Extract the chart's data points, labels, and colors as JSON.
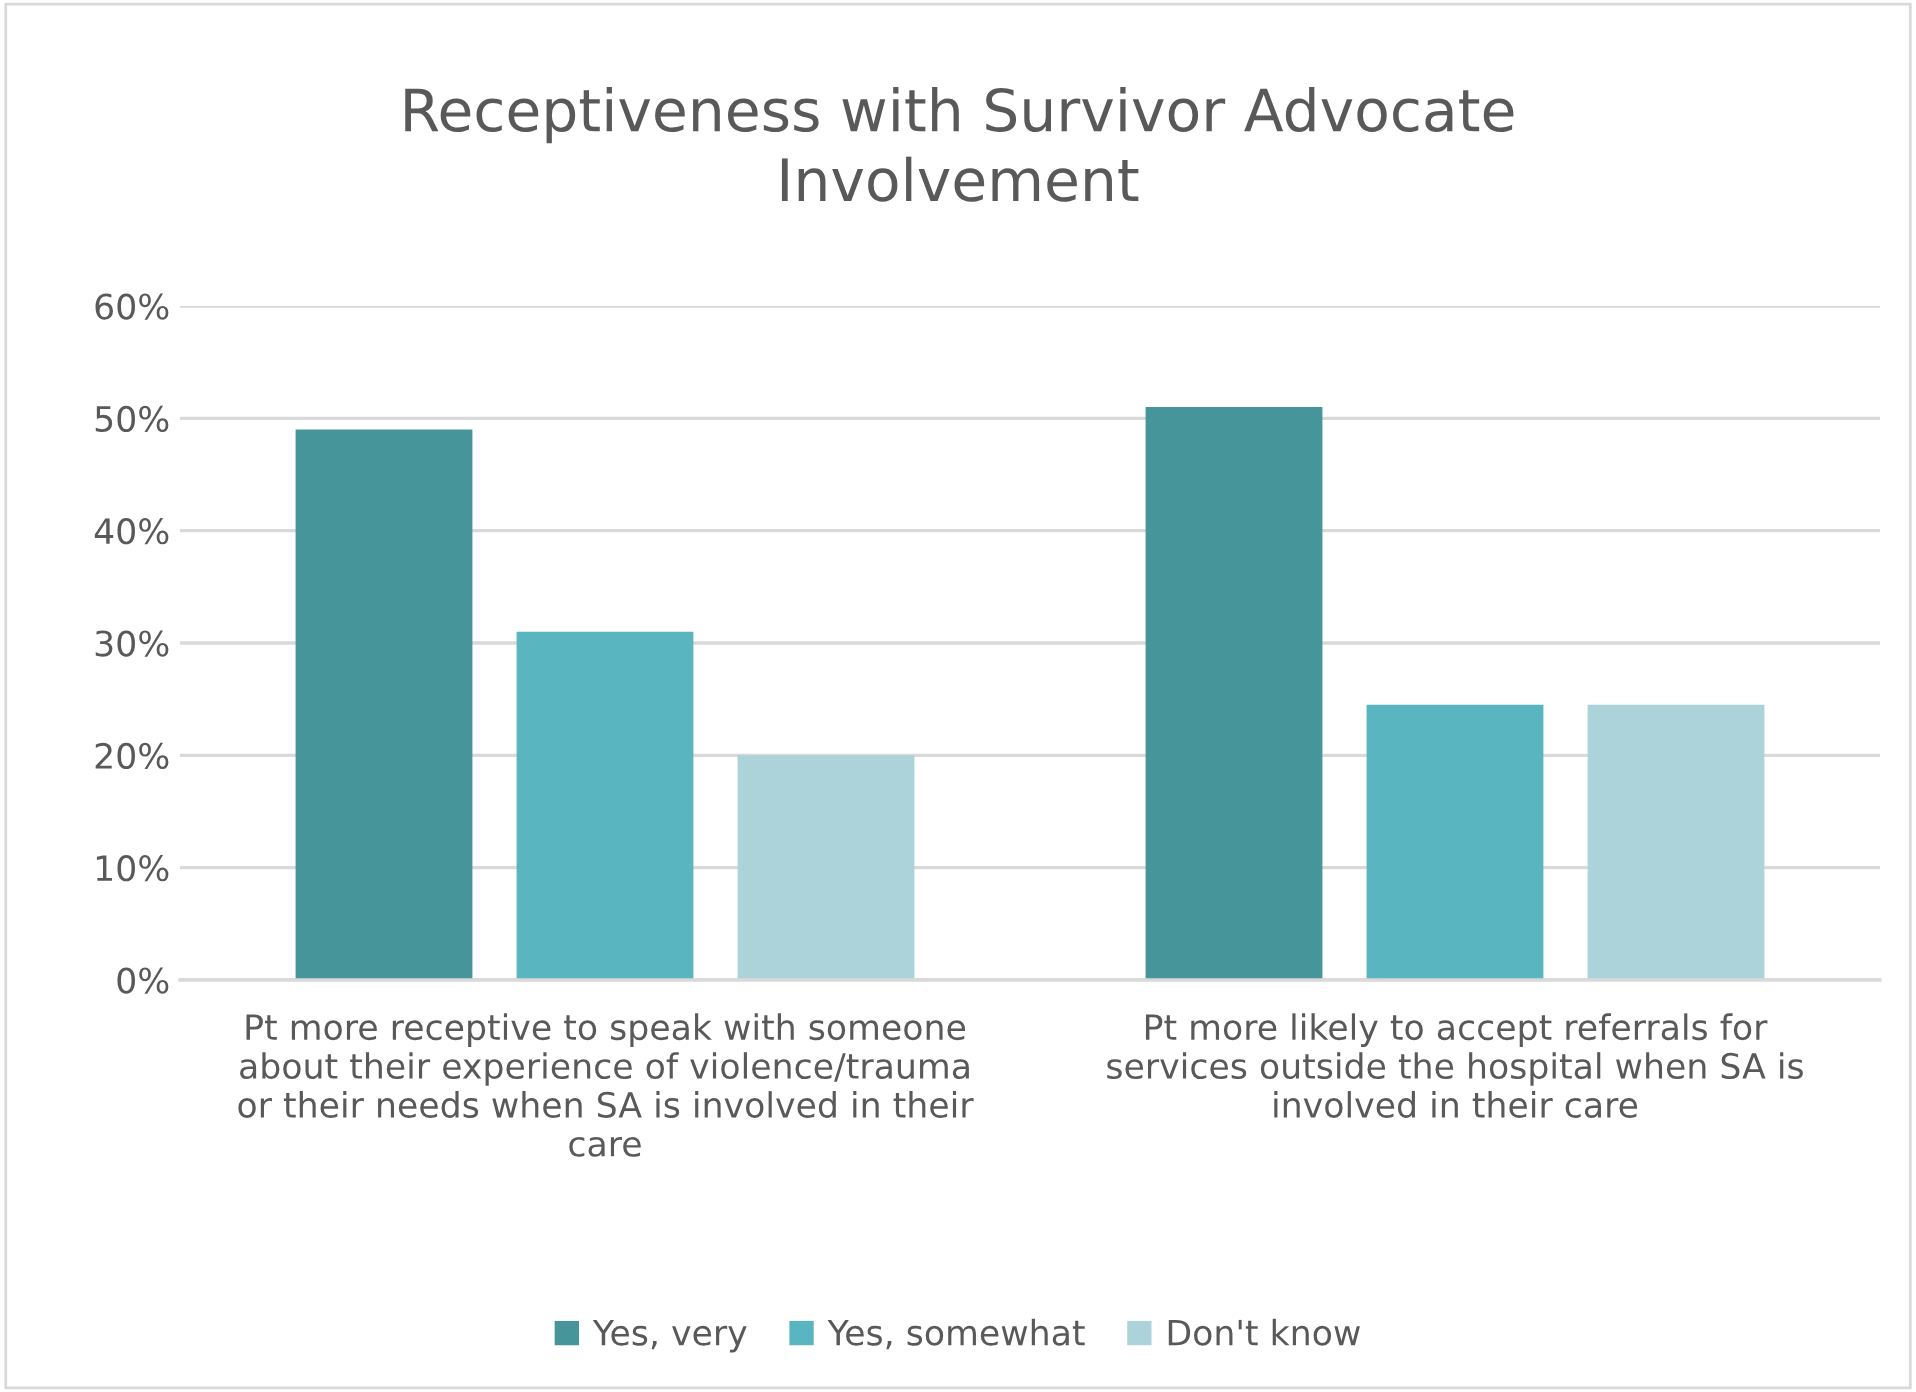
{
  "chart_data": {
    "type": "bar",
    "title": "Receptiveness with Survivor Advocate\nInvolvement",
    "categories": [
      "Pt more receptive to speak with someone\nabout their experience of violence/trauma\nor their needs when SA is involved in their\ncare",
      "Pt more likely to accept referrals for\nservices outside the hospital when SA is\ninvolved in their care"
    ],
    "series": [
      {
        "name": "Yes, very",
        "color": "#46959b",
        "values": [
          49,
          51
        ]
      },
      {
        "name": "Yes, somewhat",
        "color": "#59b5c0",
        "values": [
          31,
          24.5
        ]
      },
      {
        "name": "Don't know",
        "color": "#add3da",
        "values": [
          20,
          24.5
        ]
      }
    ],
    "ylim": [
      0,
      60
    ],
    "yticks": [
      {
        "value": 0,
        "label": "0%"
      },
      {
        "value": 10,
        "label": "10%"
      },
      {
        "value": 20,
        "label": "20%"
      },
      {
        "value": 30,
        "label": "30%"
      },
      {
        "value": 40,
        "label": "40%"
      },
      {
        "value": 50,
        "label": "50%"
      },
      {
        "value": 60,
        "label": "60%"
      }
    ],
    "grid": "y",
    "legend": "bottom"
  }
}
